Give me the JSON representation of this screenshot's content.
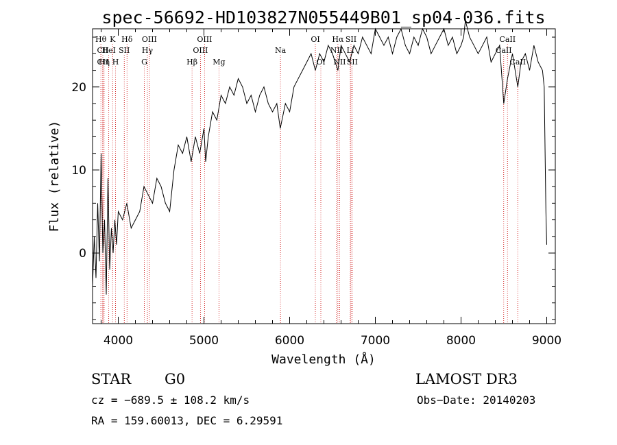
{
  "chart_data": {
    "type": "line",
    "title": "spec-56692-HD103827N055449B01_sp04-036.fits",
    "xlabel": "Wavelength (Å)",
    "ylabel": "Flux (relative)",
    "xlim": [
      3700,
      9100
    ],
    "ylim": [
      -8.5,
      27
    ],
    "xticks": [
      4000,
      5000,
      6000,
      7000,
      8000,
      9000
    ],
    "yticks": [
      0,
      10,
      20
    ],
    "grid": false,
    "line_color": "#000000",
    "marker_color": "#cc0000",
    "series": [
      {
        "x": [
          3700,
          3720,
          3740,
          3760,
          3780,
          3800,
          3820,
          3840,
          3860,
          3880,
          3900,
          3920,
          3940,
          3960,
          3980,
          4000,
          4050,
          4100,
          4150,
          4200,
          4250,
          4300,
          4350,
          4400,
          4450,
          4500,
          4550,
          4600,
          4650,
          4700,
          4750,
          4800,
          4850,
          4900,
          4950,
          5000,
          5020,
          5050,
          5100,
          5150,
          5200,
          5250,
          5300,
          5350,
          5400,
          5450,
          5500,
          5550,
          5600,
          5650,
          5700,
          5750,
          5800,
          5850,
          5890,
          5950,
          6000,
          6050,
          6100,
          6150,
          6200,
          6250,
          6300,
          6350,
          6400,
          6450,
          6500,
          6563,
          6600,
          6650,
          6700,
          6750,
          6800,
          6850,
          6900,
          6950,
          7000,
          7050,
          7100,
          7150,
          7200,
          7250,
          7300,
          7350,
          7400,
          7450,
          7500,
          7550,
          7600,
          7650,
          7700,
          7750,
          7800,
          7850,
          7900,
          7950,
          8000,
          8030,
          8050,
          8100,
          8150,
          8200,
          8250,
          8300,
          8350,
          8400,
          8450,
          8498,
          8542,
          8600,
          8662,
          8700,
          8750,
          8800,
          8850,
          8900,
          8950,
          8970,
          8990,
          9000
        ],
        "y": [
          -4,
          2,
          -3,
          6,
          -1,
          12,
          0,
          4,
          -5,
          9,
          -2,
          3,
          0,
          4,
          1,
          5,
          4,
          6,
          3,
          4,
          5,
          8,
          7,
          6,
          9,
          8,
          6,
          5,
          10,
          13,
          12,
          14,
          11,
          14,
          12,
          15,
          11,
          14,
          17,
          16,
          19,
          18,
          20,
          19,
          21,
          20,
          18,
          19,
          17,
          19,
          20,
          18,
          17,
          18,
          15,
          18,
          17,
          20,
          21,
          22,
          23,
          24,
          22,
          24,
          23,
          25,
          24,
          22,
          25,
          24,
          23,
          25,
          24,
          26,
          25,
          24,
          27,
          26,
          25,
          26,
          24,
          26,
          27,
          25,
          24,
          26,
          25,
          27,
          26,
          24,
          25,
          26,
          27,
          25,
          26,
          24,
          25,
          26,
          28,
          26,
          25,
          24,
          25,
          26,
          23,
          24,
          25,
          18,
          21,
          24,
          20,
          23,
          24,
          22,
          25,
          23,
          22,
          20,
          5,
          1
        ]
      }
    ],
    "line_markers": [
      {
        "label": "Hθ",
        "x": 3797,
        "row": 1
      },
      {
        "label": "CII",
        "x": 3820,
        "row": 2
      },
      {
        "label": "CII",
        "x": 3820,
        "row": 3
      },
      {
        "label": "HeI",
        "x": 3889,
        "row": 2
      },
      {
        "label": "Hη",
        "x": 3835,
        "row": 3
      },
      {
        "label": "K",
        "x": 3934,
        "row": 1
      },
      {
        "label": "H",
        "x": 3968,
        "row": 3
      },
      {
        "label": "SII",
        "x": 4070,
        "row": 2
      },
      {
        "label": "Hδ",
        "x": 4102,
        "row": 1
      },
      {
        "label": "OIII",
        "x": 4363,
        "row": 1
      },
      {
        "label": "Hγ",
        "x": 4340,
        "row": 2
      },
      {
        "label": "G",
        "x": 4304,
        "row": 3
      },
      {
        "label": "Hβ",
        "x": 4861,
        "row": 3
      },
      {
        "label": "OIII",
        "x": 5007,
        "row": 1
      },
      {
        "label": "OIII",
        "x": 4959,
        "row": 2
      },
      {
        "label": "Mg",
        "x": 5175,
        "row": 3
      },
      {
        "label": "Na",
        "x": 5893,
        "row": 2
      },
      {
        "label": "OI",
        "x": 6300,
        "row": 1
      },
      {
        "label": "OI",
        "x": 6364,
        "row": 3
      },
      {
        "label": "Hα",
        "x": 6563,
        "row": 1
      },
      {
        "label": "SII",
        "x": 6716,
        "row": 1
      },
      {
        "label": "NII",
        "x": 6548,
        "row": 2
      },
      {
        "label": "NII",
        "x": 6583,
        "row": 3
      },
      {
        "label": "Li",
        "x": 6708,
        "row": 2
      },
      {
        "label": "SII",
        "x": 6731,
        "row": 3
      },
      {
        "label": "CaII",
        "x": 8542,
        "row": 1
      },
      {
        "label": "CaII",
        "x": 8498,
        "row": 2
      },
      {
        "label": "CaII",
        "x": 8662,
        "row": 3
      }
    ]
  },
  "info": {
    "object_class": "STAR",
    "subclass": "G0",
    "survey": "LAMOST DR3",
    "cz": "cz = −689.5 ± 108.2 km/s",
    "obs_date": "Obs−Date: 20140203",
    "coords": "RA = 159.60013, DEC =   6.29591"
  }
}
